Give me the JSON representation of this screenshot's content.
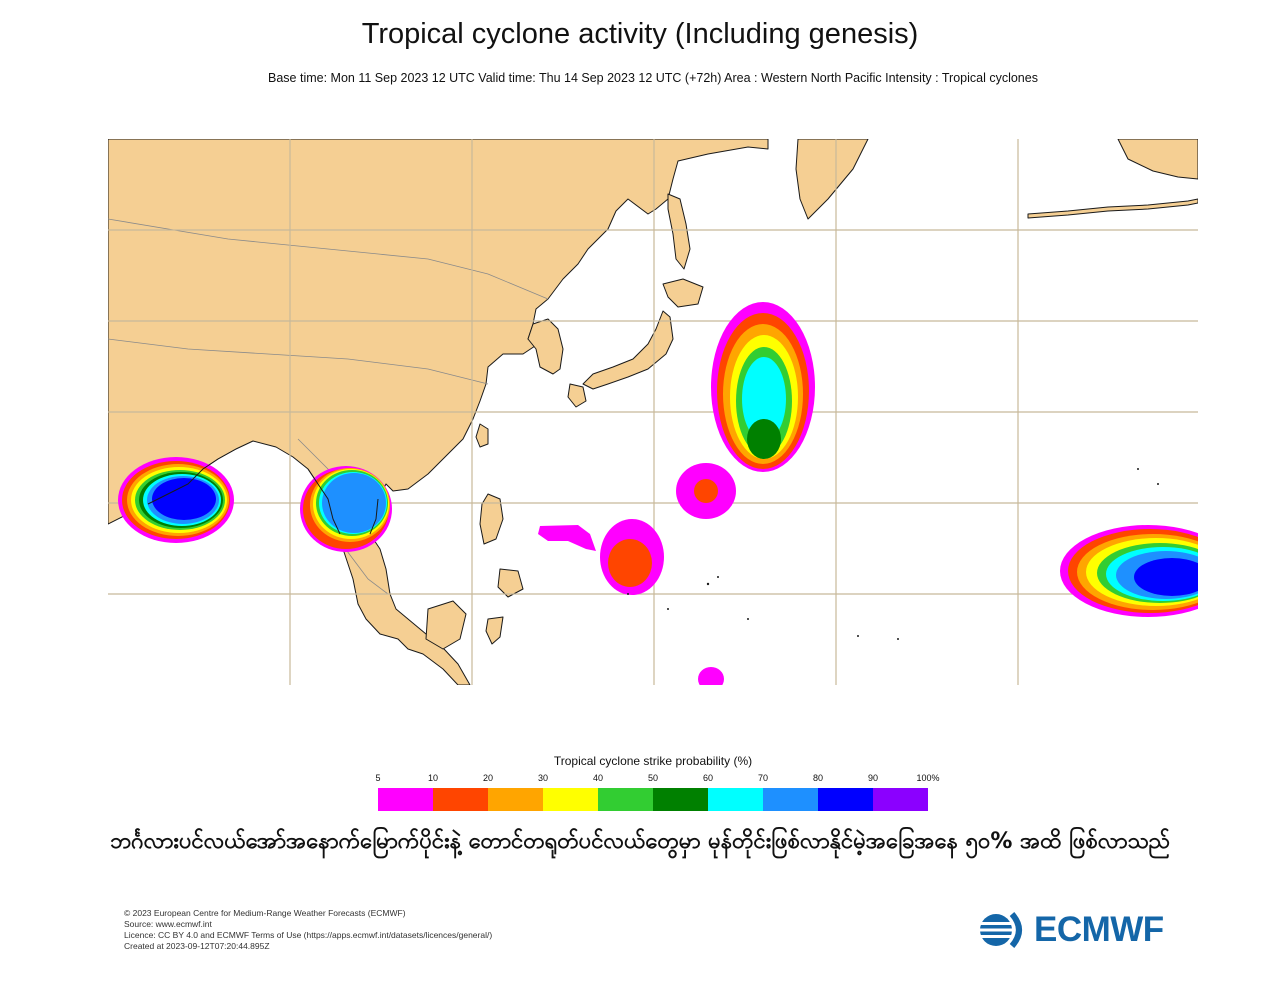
{
  "title": "Tropical cyclone activity (Including genesis)",
  "subtitle": "Base time: Mon 11 Sep 2023 12 UTC Valid time: Thu 14 Sep 2023 12 UTC (+72h) Area : Western North Pacific Intensity : Tropical cyclones",
  "legend": {
    "title": "Tropical cyclone strike probability (%)",
    "ticks": [
      "5",
      "10",
      "20",
      "30",
      "40",
      "50",
      "60",
      "70",
      "80",
      "90",
      "100%"
    ],
    "colors": [
      "#ff00ff",
      "#ff4500",
      "#ffa500",
      "#ffff00",
      "#32cd32",
      "#008000",
      "#00ffff",
      "#1e90ff",
      "#0000ff",
      "#8b00ff"
    ]
  },
  "map": {
    "colors": {
      "land": "#f5cf93",
      "ocean": "#ffffff",
      "grid": "#c8b99a",
      "coast": "#1a1a1a"
    }
  },
  "caption": "ဘင်္ဂလားပင်လယ်အော်အနောက်မြောက်ပိုင်းနဲ့ တောင်တရုတ်ပင်လယ်တွေမှာ မုန်တိုင်းဖြစ်လာနိုင်မဲ့အခြေအနေ ၅၀% အထိ ဖြစ်လာသည်",
  "footer": {
    "line1": "© 2023 European Centre for Medium-Range Weather Forecasts (ECMWF)",
    "line2": "Source: www.ecmwf.int",
    "line3": "Licence: CC BY 4.0 and ECMWF Terms of Use (https://apps.ecmwf.int/datasets/licences/general/)",
    "line4": "Created at 2023-09-12T07:20:44.895Z"
  },
  "logo": {
    "text": "ECMWF",
    "icon": "ecmwf-logo-icon"
  }
}
